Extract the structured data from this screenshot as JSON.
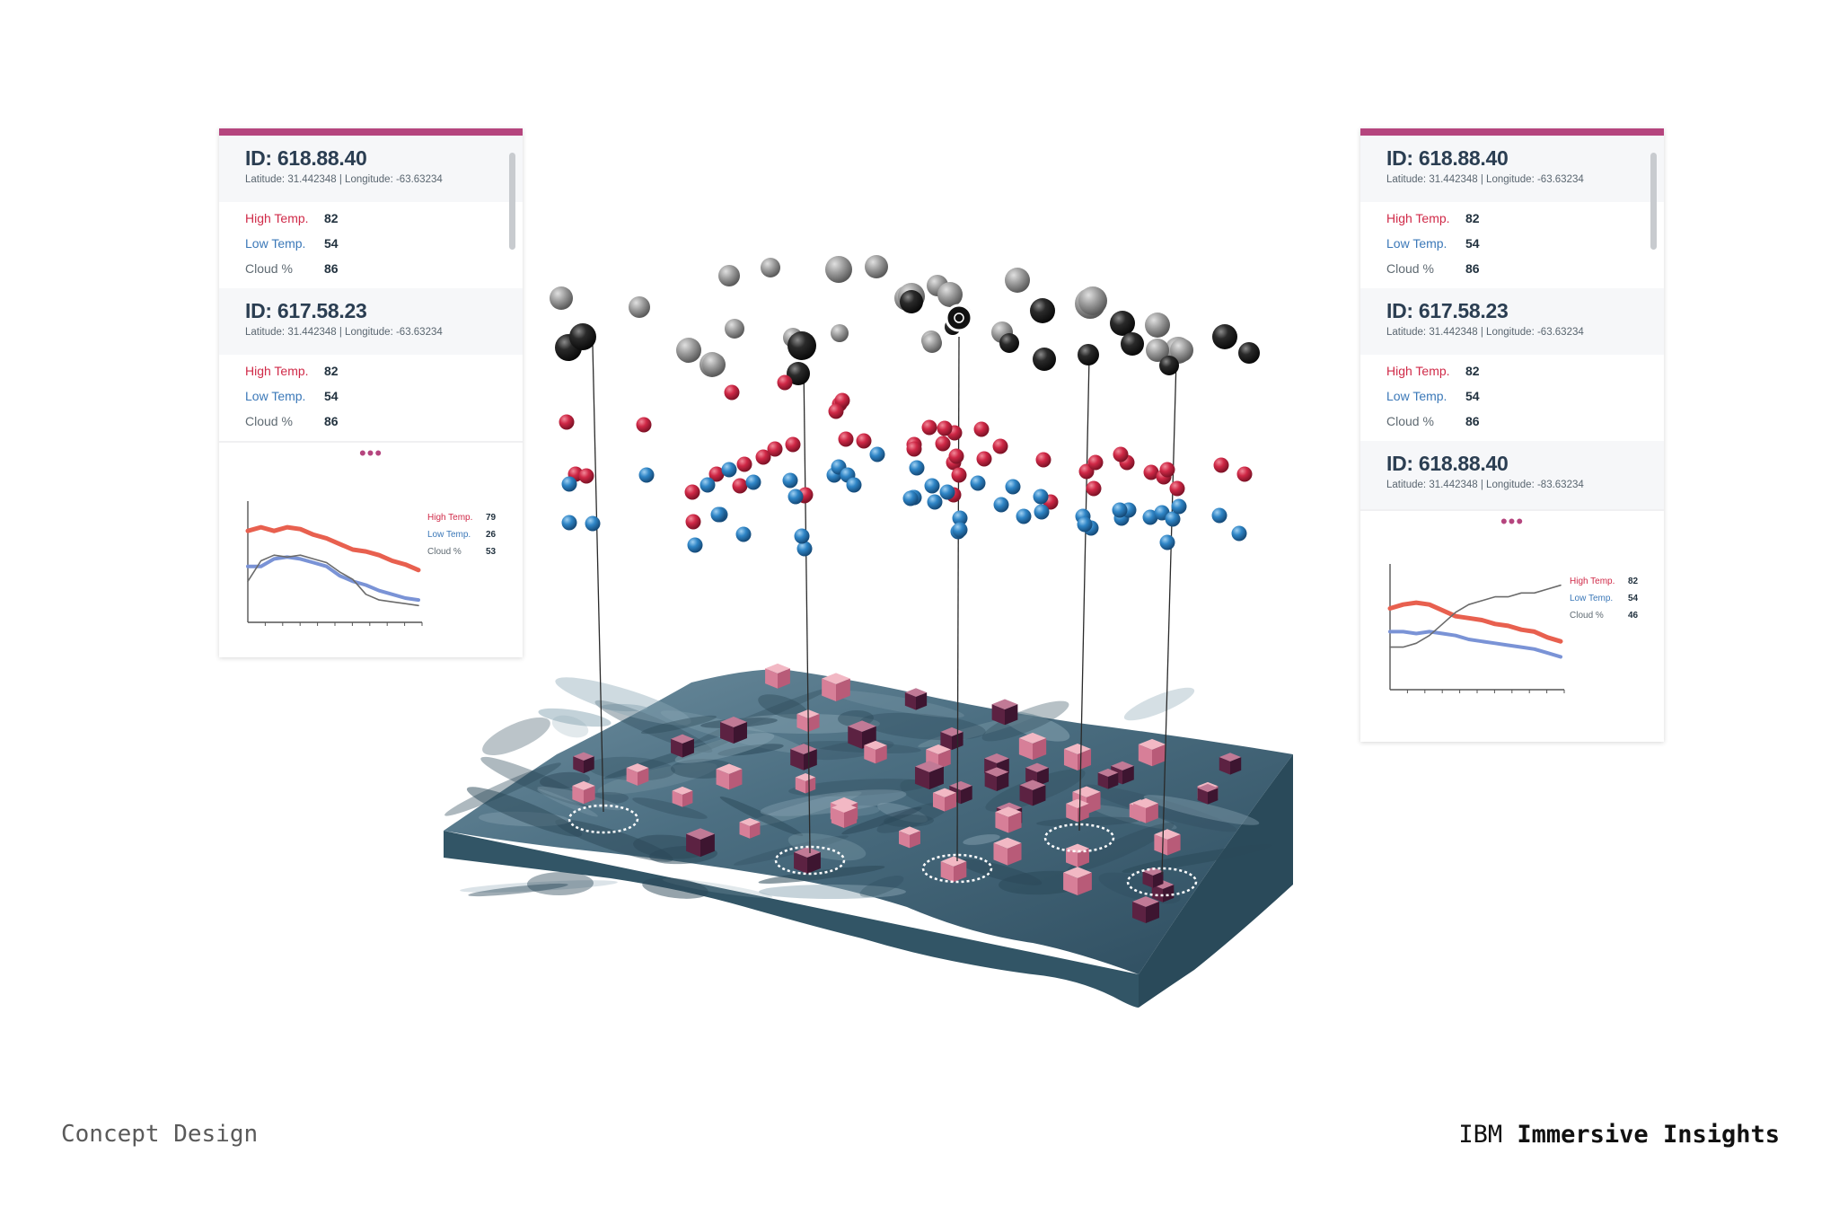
{
  "footer": {
    "left_text": "Concept Design",
    "brand": "IBM",
    "product": "Immersive Insights"
  },
  "colors": {
    "accent": "#b5457e",
    "high": "#d02a48",
    "low": "#3b78b8",
    "cloud": "#6b6b6b",
    "terrain": "#3f6478"
  },
  "left_panel": {
    "records": [
      {
        "id": "ID: 618.88.40",
        "coords": "Latitude: 31.442348 | Longitude: -63.63234",
        "rows": [
          {
            "label": "High Temp.",
            "value": "82"
          },
          {
            "label": "Low Temp.",
            "value": "54"
          },
          {
            "label": "Cloud %",
            "value": "86"
          }
        ]
      },
      {
        "id": "ID: 617.58.23",
        "coords": "Latitude: 31.442348 | Longitude: -63.63234",
        "rows": [
          {
            "label": "High Temp.",
            "value": "82"
          },
          {
            "label": "Low Temp.",
            "value": "54"
          },
          {
            "label": "Cloud %",
            "value": "86"
          }
        ]
      }
    ],
    "more": "•••",
    "legend": [
      {
        "label": "High Temp.",
        "value": "79"
      },
      {
        "label": "Low Temp.",
        "value": "26"
      },
      {
        "label": "Cloud %",
        "value": "53"
      }
    ],
    "chart_data": {
      "type": "line",
      "x": [
        0,
        1,
        2,
        3,
        4,
        5,
        6,
        7,
        8,
        9,
        10,
        11,
        12,
        13
      ],
      "series": [
        {
          "name": "High Temp.",
          "values": [
            79,
            81,
            79,
            81,
            80,
            77,
            75,
            72,
            69,
            68,
            66,
            63,
            61,
            58
          ]
        },
        {
          "name": "Low Temp.",
          "values": [
            60,
            60,
            64,
            65,
            64,
            62,
            60,
            55,
            52,
            50,
            47,
            45,
            43,
            42
          ]
        },
        {
          "name": "Cloud %",
          "values": [
            52,
            63,
            66,
            65,
            66,
            64,
            62,
            57,
            53,
            45,
            42,
            41,
            40,
            39
          ]
        }
      ]
    }
  },
  "right_panel": {
    "records": [
      {
        "id": "ID: 618.88.40",
        "coords": "Latitude: 31.442348 | Longitude: -63.63234",
        "rows": [
          {
            "label": "High Temp.",
            "value": "82"
          },
          {
            "label": "Low Temp.",
            "value": "54"
          },
          {
            "label": "Cloud %",
            "value": "86"
          }
        ]
      },
      {
        "id": "ID: 617.58.23",
        "coords": "Latitude: 31.442348 | Longitude: -63.63234",
        "rows": [
          {
            "label": "High Temp.",
            "value": "82"
          },
          {
            "label": "Low Temp.",
            "value": "54"
          },
          {
            "label": "Cloud %",
            "value": "86"
          }
        ]
      },
      {
        "id": "ID: 618.88.40",
        "coords": "Latitude: 31.442348 | Longitude: -83.63234",
        "rows": []
      }
    ],
    "more": "•••",
    "legend": [
      {
        "label": "High Temp.",
        "value": "82"
      },
      {
        "label": "Low Temp.",
        "value": "54"
      },
      {
        "label": "Cloud %",
        "value": "46"
      }
    ],
    "chart_data": {
      "type": "line",
      "x": [
        0,
        1,
        2,
        3,
        4,
        5,
        6,
        7,
        8,
        9,
        10,
        11,
        12,
        13
      ],
      "series": [
        {
          "name": "High Temp.",
          "values": [
            72,
            74,
            75,
            74,
            71,
            68,
            67,
            66,
            64,
            63,
            61,
            60,
            57,
            55
          ]
        },
        {
          "name": "Low Temp.",
          "values": [
            60,
            60,
            59,
            60,
            59,
            58,
            56,
            55,
            54,
            53,
            52,
            51,
            49,
            47
          ]
        },
        {
          "name": "Cloud %",
          "values": [
            52,
            52,
            54,
            58,
            64,
            70,
            74,
            76,
            78,
            78,
            80,
            80,
            82,
            84
          ]
        }
      ]
    }
  },
  "scene": {
    "stations": 6
  }
}
